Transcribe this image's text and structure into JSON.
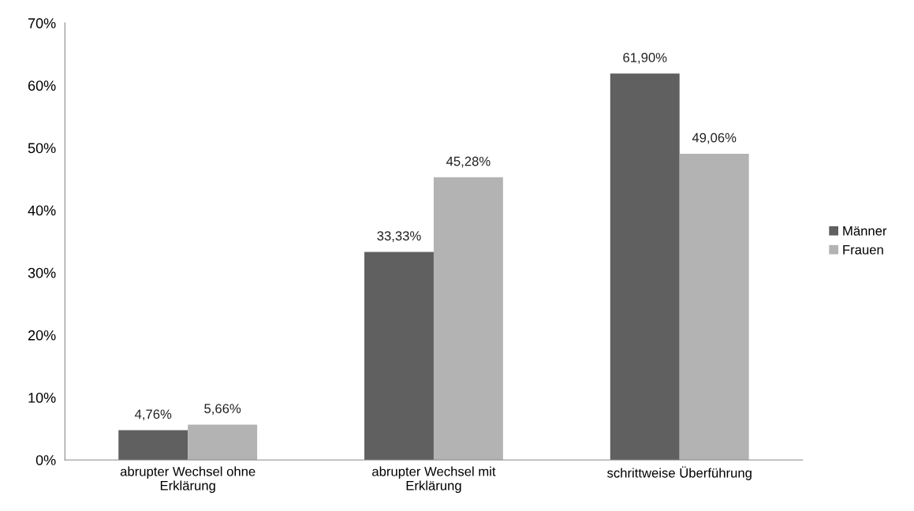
{
  "chart_data": {
    "type": "bar",
    "categories": [
      "abrupter Wechsel ohne\nErklärung",
      "abrupter Wechsel mit\nErklärung",
      "schrittweise Überführung"
    ],
    "series": [
      {
        "name": "Männer",
        "color": "#606060",
        "values": [
          4.76,
          33.33,
          61.9
        ],
        "value_labels": [
          "4,76%",
          "33,33%",
          "61,90%"
        ]
      },
      {
        "name": "Frauen",
        "color": "#b3b3b3",
        "values": [
          5.66,
          45.28,
          49.06
        ],
        "value_labels": [
          "5,66%",
          "45,28%",
          "49,06%"
        ]
      }
    ],
    "ylim": [
      0,
      70
    ],
    "yticks": [
      {
        "value": 0,
        "label": "0%"
      },
      {
        "value": 10,
        "label": "10%"
      },
      {
        "value": 20,
        "label": "20%"
      },
      {
        "value": 30,
        "label": "30%"
      },
      {
        "value": 40,
        "label": "40%"
      },
      {
        "value": 50,
        "label": "50%"
      },
      {
        "value": 60,
        "label": "60%"
      },
      {
        "value": 70,
        "label": "70%"
      }
    ],
    "grid": false,
    "legend": "right"
  }
}
